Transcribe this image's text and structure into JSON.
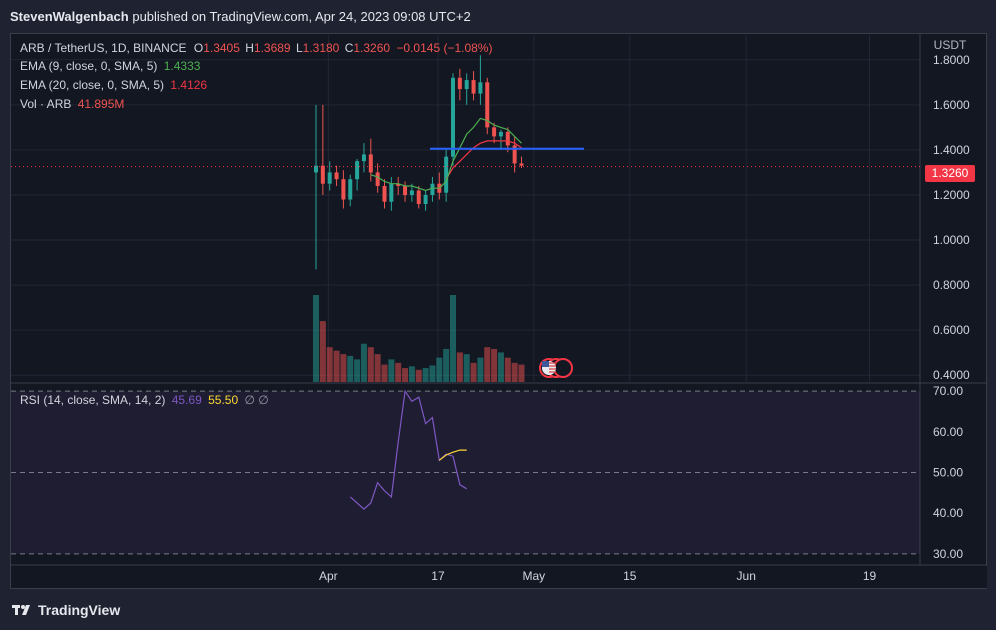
{
  "header": {
    "publisher": "StevenWalgenbach",
    "published_text": "published on TradingView.com, Apr 24, 2023 09:08 UTC+2"
  },
  "legend": {
    "symbol": "ARB / TetherUS, 1D, BINANCE",
    "o_label": "O",
    "o_value": "1.3405",
    "h_label": "H",
    "h_value": "1.3689",
    "l_label": "L",
    "l_value": "1.3180",
    "c_label": "C",
    "c_value": "1.3260",
    "change": "−0.0145 (−1.08%)",
    "ema9_label": "EMA (9, close, 0, SMA, 5)",
    "ema9_value": "1.4333",
    "ema20_label": "EMA (20, close, 0, SMA, 5)",
    "ema20_value": "1.4126",
    "vol_label": "Vol · ARB",
    "vol_value": "41.895M"
  },
  "rsi_legend": {
    "label": "RSI (14, close, SMA, 14, 2)",
    "rsi_value": "45.69",
    "sma_value": "55.50",
    "extra": "∅  ∅"
  },
  "price_axis_unit": "USDT",
  "last_price": "1.3260",
  "footer": {
    "brand": "TradingView"
  },
  "colors": {
    "up": "#26a69a",
    "down": "#ef5350",
    "ema9": "#4caf50",
    "ema20": "#f23645",
    "rsi": "#7e57c2",
    "rsi_sma": "#fdd835",
    "hline": "#2962ff",
    "last": "#f23645"
  },
  "chart_data": [
    {
      "type": "candlestick",
      "title": "ARB / TetherUS, 1D, BINANCE",
      "ylabel": "USDT",
      "ylim": [
        0.37,
        1.91
      ],
      "y_ticks": [
        "1.8000",
        "1.6000",
        "1.4000",
        "1.2000",
        "1.0000",
        "0.8000",
        "0.6000",
        "0.4000"
      ],
      "x_ticks": [
        {
          "label": "Apr",
          "day": 8
        },
        {
          "label": "17",
          "day": 24
        },
        {
          "label": "May",
          "day": 38
        },
        {
          "label": "15",
          "day": 52
        },
        {
          "label": "Jun",
          "day": 69
        },
        {
          "label": "19",
          "day": 87
        }
      ],
      "candles": [
        {
          "o": 1.3,
          "h": 1.6,
          "l": 0.87,
          "c": 1.33
        },
        {
          "o": 1.33,
          "h": 1.6,
          "l": 1.2,
          "c": 1.25
        },
        {
          "o": 1.25,
          "h": 1.35,
          "l": 1.22,
          "c": 1.3
        },
        {
          "o": 1.3,
          "h": 1.33,
          "l": 1.24,
          "c": 1.27
        },
        {
          "o": 1.27,
          "h": 1.31,
          "l": 1.14,
          "c": 1.18
        },
        {
          "o": 1.18,
          "h": 1.29,
          "l": 1.15,
          "c": 1.27
        },
        {
          "o": 1.27,
          "h": 1.36,
          "l": 1.22,
          "c": 1.35
        },
        {
          "o": 1.35,
          "h": 1.43,
          "l": 1.3,
          "c": 1.38
        },
        {
          "o": 1.38,
          "h": 1.45,
          "l": 1.26,
          "c": 1.3
        },
        {
          "o": 1.3,
          "h": 1.34,
          "l": 1.21,
          "c": 1.24
        },
        {
          "o": 1.24,
          "h": 1.27,
          "l": 1.14,
          "c": 1.17
        },
        {
          "o": 1.17,
          "h": 1.28,
          "l": 1.13,
          "c": 1.25
        },
        {
          "o": 1.25,
          "h": 1.28,
          "l": 1.2,
          "c": 1.24
        },
        {
          "o": 1.24,
          "h": 1.26,
          "l": 1.17,
          "c": 1.2
        },
        {
          "o": 1.2,
          "h": 1.25,
          "l": 1.17,
          "c": 1.22
        },
        {
          "o": 1.22,
          "h": 1.24,
          "l": 1.14,
          "c": 1.16
        },
        {
          "o": 1.16,
          "h": 1.22,
          "l": 1.13,
          "c": 1.2
        },
        {
          "o": 1.2,
          "h": 1.28,
          "l": 1.17,
          "c": 1.25
        },
        {
          "o": 1.25,
          "h": 1.3,
          "l": 1.18,
          "c": 1.21
        },
        {
          "o": 1.21,
          "h": 1.4,
          "l": 1.17,
          "c": 1.37
        },
        {
          "o": 1.37,
          "h": 1.74,
          "l": 1.33,
          "c": 1.72
        },
        {
          "o": 1.72,
          "h": 1.76,
          "l": 1.62,
          "c": 1.67
        },
        {
          "o": 1.67,
          "h": 1.74,
          "l": 1.6,
          "c": 1.71
        },
        {
          "o": 1.71,
          "h": 1.75,
          "l": 1.62,
          "c": 1.65
        },
        {
          "o": 1.65,
          "h": 1.82,
          "l": 1.6,
          "c": 1.7
        },
        {
          "o": 1.7,
          "h": 1.72,
          "l": 1.47,
          "c": 1.5
        },
        {
          "o": 1.5,
          "h": 1.52,
          "l": 1.43,
          "c": 1.46
        },
        {
          "o": 1.46,
          "h": 1.49,
          "l": 1.4,
          "c": 1.48
        },
        {
          "o": 1.48,
          "h": 1.5,
          "l": 1.39,
          "c": 1.42
        },
        {
          "o": 1.42,
          "h": 1.46,
          "l": 1.3,
          "c": 1.34
        },
        {
          "o": 1.34,
          "h": 1.37,
          "l": 1.32,
          "c": 1.33
        }
      ],
      "ema9": [
        null,
        null,
        null,
        null,
        null,
        null,
        null,
        null,
        1.29,
        1.28,
        1.26,
        1.25,
        1.25,
        1.24,
        1.24,
        1.23,
        1.22,
        1.23,
        1.23,
        1.26,
        1.35,
        1.41,
        1.47,
        1.5,
        1.54,
        1.53,
        1.51,
        1.5,
        1.49,
        1.46,
        1.43
      ],
      "ema20": [
        null,
        null,
        null,
        null,
        null,
        null,
        null,
        null,
        null,
        null,
        null,
        null,
        null,
        null,
        null,
        null,
        null,
        null,
        null,
        1.27,
        1.32,
        1.35,
        1.38,
        1.41,
        1.43,
        1.44,
        1.44,
        1.44,
        1.44,
        1.43,
        1.41
      ],
      "horizontal_line": 1.405,
      "last_price": 1.326
    },
    {
      "type": "bar",
      "title": "Vol · ARB",
      "values": [
        100,
        70,
        40,
        36,
        32,
        30,
        26,
        44,
        40,
        32,
        20,
        26,
        22,
        16,
        18,
        14,
        16,
        19,
        28,
        38,
        100,
        34,
        32,
        22,
        28,
        40,
        38,
        34,
        28,
        22,
        20
      ],
      "directions": [
        "up",
        "down",
        "down",
        "down",
        "down",
        "up",
        "up",
        "up",
        "down",
        "down",
        "down",
        "up",
        "down",
        "down",
        "up",
        "down",
        "up",
        "up",
        "up",
        "up",
        "up",
        "down",
        "up",
        "down",
        "up",
        "down",
        "down",
        "up",
        "down",
        "down",
        "down"
      ]
    },
    {
      "type": "line",
      "title": "RSI (14, close, SMA, 14, 2)",
      "ylim": [
        28,
        72
      ],
      "y_ticks": [
        "70.00",
        "60.00",
        "50.00",
        "40.00",
        "30.00"
      ],
      "bands": [
        70,
        50,
        30
      ],
      "rsi_start_index": 5,
      "rsi": [
        44,
        42.5,
        41,
        42.5,
        47.5,
        45.5,
        44,
        57.5,
        70,
        67.5,
        68.5,
        62,
        63.5,
        53,
        54.5,
        54,
        47,
        46
      ],
      "rsi_sma_start_index": 18,
      "rsi_sma": [
        53,
        54.3,
        55,
        55.5,
        55.5
      ]
    }
  ]
}
